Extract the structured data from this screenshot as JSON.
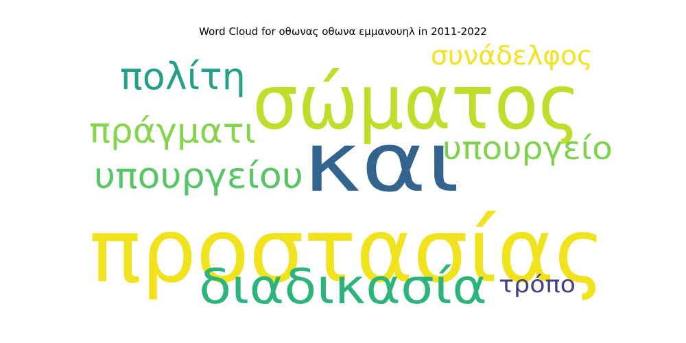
{
  "chart_data": {
    "type": "wordcloud",
    "title": "Word Cloud for οθωνας οθωνα εμμανουηλ in 2011-2022",
    "words": [
      {
        "text": "προστασίας",
        "weight": 1.0,
        "color": "#f0e31e"
      },
      {
        "text": "και",
        "weight": 0.88,
        "color": "#33648d"
      },
      {
        "text": "σώματος",
        "weight": 0.8,
        "color": "#bfdd2b"
      },
      {
        "text": "διαδικασία",
        "weight": 0.58,
        "color": "#2db47c"
      },
      {
        "text": "υπουργείου",
        "weight": 0.45,
        "color": "#56c566"
      },
      {
        "text": "πράγματι",
        "weight": 0.44,
        "color": "#86d34c"
      },
      {
        "text": "πολίτη",
        "weight": 0.43,
        "color": "#23a087"
      },
      {
        "text": "υπουργείο",
        "weight": 0.4,
        "color": "#7ed24f"
      },
      {
        "text": "συνάδελφος",
        "weight": 0.36,
        "color": "#f2e222"
      },
      {
        "text": "τρόπο",
        "weight": 0.33,
        "color": "#453f84"
      }
    ]
  }
}
